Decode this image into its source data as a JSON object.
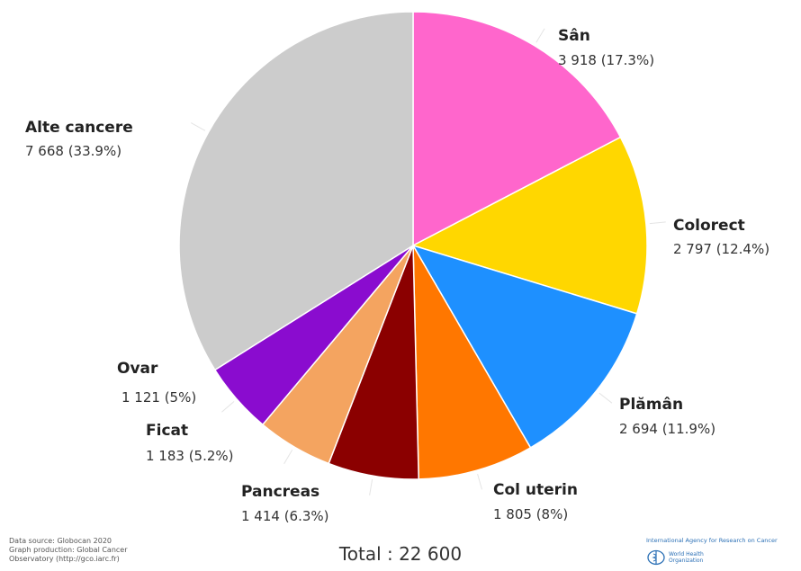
{
  "chart_data": {
    "type": "pie",
    "slices": [
      {
        "name": "Sân",
        "value_label": "3 918 (17.3%)",
        "value": 3918,
        "percent": 17.3,
        "color": "#ff66cc"
      },
      {
        "name": "Colorect",
        "value_label": "2 797 (12.4%)",
        "value": 2797,
        "percent": 12.4,
        "color": "#ffd700"
      },
      {
        "name": "Plămân",
        "value_label": "2 694 (11.9%)",
        "value": 2694,
        "percent": 11.9,
        "color": "#1e90ff"
      },
      {
        "name": "Col uterin",
        "value_label": "1 805 (8%)",
        "value": 1805,
        "percent": 8.0,
        "color": "#ff7700"
      },
      {
        "name": "Pancreas",
        "value_label": "1 414 (6.3%)",
        "value": 1414,
        "percent": 6.3,
        "color": "#8b0000"
      },
      {
        "name": "Ficat",
        "value_label": "1 183 (5.2%)",
        "value": 1183,
        "percent": 5.2,
        "color": "#f4a460"
      },
      {
        "name": "Ovar",
        "value_label": "1 121 (5%)",
        "value": 1121,
        "percent": 5.0,
        "color": "#8a0ccf"
      },
      {
        "name": "Alte cancere",
        "value_label": "7 668 (33.9%)",
        "value": 7668,
        "percent": 33.9,
        "color": "#cccccc"
      }
    ],
    "total_label": "Total : 22 600"
  },
  "footer": {
    "source_lines": [
      "Data source: Globocan 2020",
      "Graph production: Global Cancer",
      "Observatory (http://gco.iarc.fr)"
    ],
    "iarc_text": "International Agency for Research on Cancer",
    "who_lines": [
      "World Health",
      "Organization"
    ]
  }
}
